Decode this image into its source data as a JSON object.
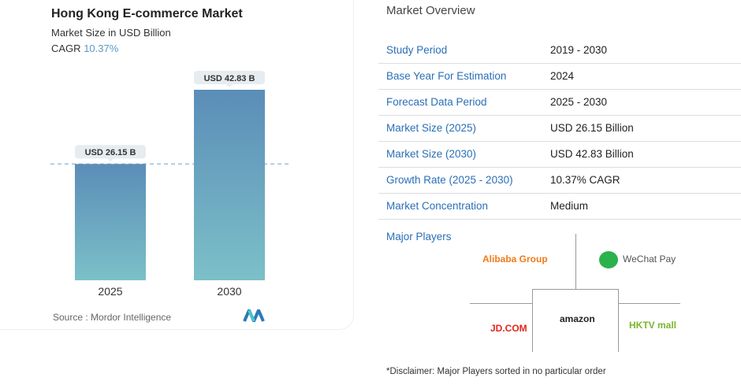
{
  "chart_data": {
    "type": "bar",
    "title": "Hong Kong E-commerce Market",
    "subtitle": "Market Size in USD Billion",
    "cagr_label": "CAGR",
    "cagr_value": "10.37%",
    "categories": [
      "2025",
      "2030"
    ],
    "values": [
      26.15,
      42.83
    ],
    "data_labels": [
      "USD 26.15 B",
      "USD 42.83 B"
    ],
    "ylim": [
      0,
      42.83
    ],
    "grid": false,
    "reference_line": 26.15,
    "bar_color_top": "#5b8db8",
    "bar_color_bottom": "#7cc0c8",
    "source": "Source :  Mordor Intelligence"
  },
  "overview": {
    "title": "Market Overview",
    "rows": [
      {
        "label": "Study Period",
        "value": "2019 - 2030"
      },
      {
        "label": "Base Year For Estimation",
        "value": "2024"
      },
      {
        "label": "Forecast Data Period",
        "value": "2025 - 2030"
      },
      {
        "label": "Market Size (2025)",
        "value": "USD 26.15 Billion"
      },
      {
        "label": "Market Size (2030)",
        "value": "USD 42.83 Billion"
      },
      {
        "label": "Growth Rate (2025 - 2030)",
        "value": "10.37% CAGR"
      },
      {
        "label": "Market Concentration",
        "value": "Medium"
      }
    ],
    "major_players_label": "Major Players",
    "players": [
      "Alibaba Group",
      "WeChat Pay",
      "amazon",
      "JD.COM",
      "HKTV mall"
    ],
    "disclaimer": "*Disclaimer: Major Players sorted in no particular order"
  }
}
